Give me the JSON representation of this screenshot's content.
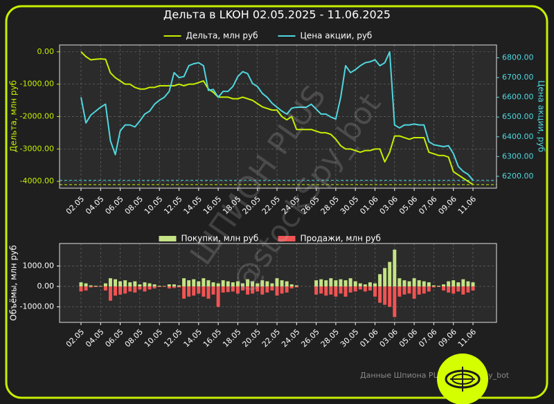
{
  "chart_data": [
    {
      "type": "line",
      "title": "Дельта в LKOH 02.05.2025 - 11.06.2025",
      "ylabel": "Дельта, млн руб",
      "y2label": "Цена акции, руб",
      "legend": "upper center",
      "grid": true,
      "categories": [
        "02.05",
        null,
        null,
        null,
        "04.05",
        null,
        null,
        null,
        "06.05",
        null,
        null,
        null,
        "08.05",
        null,
        null,
        null,
        "10.05",
        null,
        null,
        null,
        "12.05",
        null,
        null,
        null,
        "14.05",
        null,
        null,
        null,
        "16.05",
        null,
        null,
        null,
        "18.05",
        null,
        null,
        null,
        "20.05",
        null,
        null,
        null,
        "22.05",
        null,
        null,
        null,
        "24.05",
        null,
        null,
        null,
        "26.05",
        null,
        null,
        null,
        "28.05",
        null,
        null,
        null,
        "30.05",
        null,
        null,
        null,
        "01.06",
        null,
        null,
        null,
        "03.06",
        null,
        null,
        null,
        "05.06",
        null,
        null,
        null,
        "07.06",
        null,
        null,
        null,
        "09.06",
        null,
        null,
        null,
        "11.06"
      ],
      "ylim": [
        -4210,
        210
      ],
      "yticks": [
        {
          "value": 0,
          "label": "0.00"
        },
        {
          "value": -1000,
          "label": "-1000.00"
        },
        {
          "value": -2000,
          "label": "-2000.00"
        },
        {
          "value": -3000,
          "label": "-3000.00"
        },
        {
          "value": -4000,
          "label": "-4000.00"
        }
      ],
      "y2lim": [
        6140,
        6865
      ],
      "y2ticks": [
        {
          "value": 6200,
          "label": "6200.00"
        },
        {
          "value": 6300,
          "label": "6300.00"
        },
        {
          "value": 6400,
          "label": "6400.00"
        },
        {
          "value": 6500,
          "label": "6500.00"
        },
        {
          "value": 6600,
          "label": "6600.00"
        },
        {
          "value": 6700,
          "label": "6700.00"
        },
        {
          "value": 6800,
          "label": "6800.00"
        }
      ],
      "series": [
        {
          "name": "Дельта, млн руб",
          "color": "#c6f000",
          "values": [
            0,
            -150,
            -250,
            -230,
            -220,
            -230,
            -650,
            -800,
            -900,
            -1000,
            -1000,
            -1100,
            -1150,
            -1150,
            -1100,
            -1100,
            -1050,
            -1050,
            -1050,
            -1050,
            -1000,
            -1050,
            -1000,
            -1000,
            -950,
            -900,
            -1150,
            -1250,
            -1400,
            -1400,
            -1400,
            -1450,
            -1450,
            -1400,
            -1450,
            -1500,
            -1600,
            -1700,
            -1750,
            -1800,
            -1800,
            -2000,
            -2100,
            -2000,
            -2400,
            -2400,
            -2400,
            -2400,
            -2450,
            -2500,
            -2500,
            -2550,
            -2700,
            -2900,
            -3000,
            -3000,
            -3050,
            -3100,
            -3050,
            -3050,
            -3000,
            -3000,
            -3400,
            -3100,
            -2600,
            -2600,
            -2650,
            -2700,
            -2650,
            -2650,
            -2650,
            -3100,
            -3150,
            -3200,
            -3200,
            -3250,
            -3700,
            -3800,
            -3900,
            -4000,
            -4100
          ]
        },
        {
          "name": "Цена акции, руб",
          "color": "#4fd8e0",
          "axis": "y2",
          "values": [
            6600,
            6470,
            6510,
            6530,
            6550,
            6565,
            6380,
            6310,
            6430,
            6460,
            6460,
            6450,
            6480,
            6515,
            6530,
            6565,
            6585,
            6600,
            6630,
            6725,
            6700,
            6705,
            6760,
            6770,
            6775,
            6760,
            6635,
            6640,
            6600,
            6630,
            6630,
            6655,
            6705,
            6730,
            6720,
            6670,
            6655,
            6620,
            6600,
            6570,
            6550,
            6530,
            6515,
            6545,
            6550,
            6550,
            6550,
            6565,
            6540,
            6515,
            6515,
            6500,
            6490,
            6600,
            6760,
            6725,
            6740,
            6760,
            6775,
            6780,
            6790,
            6760,
            6775,
            6830,
            6460,
            6445,
            6460,
            6460,
            6465,
            6460,
            6460,
            6375,
            6360,
            6355,
            6350,
            6355,
            6315,
            6250,
            6225,
            6210,
            6180
          ]
        }
      ]
    },
    {
      "type": "bar",
      "ylabel": "Объёмы, млн руб",
      "legend": "upper center",
      "grid": true,
      "categories": [
        "02.05",
        null,
        null,
        null,
        "04.05",
        null,
        null,
        null,
        "06.05",
        null,
        null,
        null,
        "08.05",
        null,
        null,
        null,
        "10.05",
        null,
        null,
        null,
        "12.05",
        null,
        null,
        null,
        "14.05",
        null,
        null,
        null,
        "16.05",
        null,
        null,
        null,
        "18.05",
        null,
        null,
        null,
        "20.05",
        null,
        null,
        null,
        "22.05",
        null,
        null,
        null,
        "24.05",
        null,
        null,
        null,
        "26.05",
        null,
        null,
        null,
        "28.05",
        null,
        null,
        null,
        "30.05",
        null,
        null,
        null,
        "01.06",
        null,
        null,
        null,
        "03.06",
        null,
        null,
        null,
        "05.06",
        null,
        null,
        null,
        "07.06",
        null,
        null,
        null,
        "09.06",
        null,
        null,
        null,
        "11.06"
      ],
      "ylim": [
        -1760,
        2100
      ],
      "yticks": [
        {
          "value": 1000,
          "label": "1000.00"
        },
        {
          "value": 0,
          "label": "0.00"
        },
        {
          "value": -1000,
          "label": "-1000.00"
        }
      ],
      "series": [
        {
          "name": "Покупки, млн руб",
          "color": "#c5e384",
          "values": [
            200,
            150,
            50,
            30,
            20,
            150,
            400,
            350,
            250,
            300,
            200,
            250,
            100,
            200,
            150,
            100,
            30,
            20,
            100,
            100,
            50,
            400,
            300,
            350,
            250,
            400,
            300,
            200,
            150,
            300,
            250,
            200,
            250,
            150,
            350,
            250,
            150,
            300,
            250,
            150,
            400,
            300,
            250,
            100,
            50,
            0,
            0,
            0,
            300,
            350,
            300,
            400,
            300,
            350,
            300,
            400,
            250,
            150,
            100,
            200,
            150,
            600,
            900,
            1200,
            1800,
            400,
            300,
            250,
            400,
            300,
            250,
            200,
            50,
            30,
            100,
            250,
            300,
            200,
            350,
            250,
            200
          ]
        },
        {
          "name": "Продажи, млн руб",
          "color": "#f05454",
          "values": [
            -250,
            -200,
            -50,
            -30,
            -20,
            -200,
            -700,
            -450,
            -400,
            -350,
            -250,
            -300,
            -150,
            -250,
            -150,
            -100,
            -30,
            -20,
            -100,
            -80,
            -50,
            -600,
            -500,
            -450,
            -350,
            -500,
            -600,
            -400,
            -1000,
            -300,
            -280,
            -250,
            -350,
            -200,
            -400,
            -350,
            -250,
            -400,
            -300,
            -200,
            -450,
            -350,
            -300,
            -100,
            -50,
            0,
            0,
            0,
            -400,
            -350,
            -450,
            -400,
            -500,
            -350,
            -500,
            -300,
            -250,
            -150,
            -250,
            -200,
            -500,
            -800,
            -900,
            -1000,
            -1500,
            -500,
            -400,
            -350,
            -600,
            -400,
            -350,
            -250,
            -50,
            -30,
            -200,
            -300,
            -350,
            -250,
            -400,
            -300,
            -200
          ]
        }
      ]
    }
  ],
  "footer": "Данные Шпиона PLUS @StockSpy_bot",
  "watermark": [
    "ШПИОН PLUS",
    "@stockSpy_bot"
  ]
}
